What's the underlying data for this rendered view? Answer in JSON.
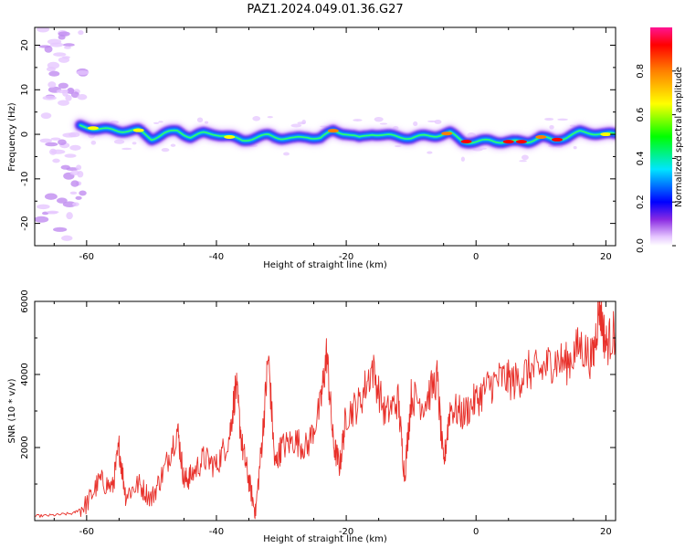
{
  "title": "PAZ1.2024.049.01.36.G27",
  "colors": {
    "snr_line": "#e8302a",
    "axis": "#000000"
  },
  "chart_data": [
    {
      "type": "heatmap",
      "xlabel": "Height of straight line (km)",
      "ylabel": "Frequency (Hz)",
      "xlim": [
        -68,
        21.5
      ],
      "ylim": [
        -25,
        24
      ],
      "xticks": [
        -60,
        -40,
        -20,
        0,
        20
      ],
      "yticks": [
        -20,
        -10,
        0,
        10,
        20
      ],
      "ridge": [
        [
          -61,
          1.8
        ],
        [
          -58,
          1.2
        ],
        [
          -55,
          0.8
        ],
        [
          -52,
          0.9
        ],
        [
          -50,
          -1.0
        ],
        [
          -48,
          0.2
        ],
        [
          -46,
          0.8
        ],
        [
          -44,
          -0.6
        ],
        [
          -42,
          0.2
        ],
        [
          -40,
          0.1
        ],
        [
          -38,
          -0.6
        ],
        [
          -36,
          -1.3
        ],
        [
          -34,
          -0.8
        ],
        [
          -32,
          -0.2
        ],
        [
          -30,
          -0.8
        ],
        [
          -28,
          -1.0
        ],
        [
          -26,
          -0.5
        ],
        [
          -24,
          -0.9
        ],
        [
          -22,
          0.8
        ],
        [
          -20,
          0.2
        ],
        [
          -18,
          -0.9
        ],
        [
          -16,
          0.2
        ],
        [
          -14,
          -0.3
        ],
        [
          -12,
          -0.5
        ],
        [
          -10,
          -0.8
        ],
        [
          -8,
          -0.4
        ],
        [
          -6,
          -0.2
        ],
        [
          -4,
          0.3
        ],
        [
          -2,
          -1.6
        ],
        [
          0,
          -1.7
        ],
        [
          2,
          -1.4
        ],
        [
          4,
          -1.6
        ],
        [
          6,
          -1.7
        ],
        [
          8,
          -1.6
        ],
        [
          10,
          -0.6
        ],
        [
          12,
          -1.4
        ],
        [
          14,
          -0.6
        ],
        [
          16,
          0.5
        ],
        [
          18,
          0.3
        ],
        [
          20,
          0.0
        ]
      ],
      "colorbar": {
        "label": "Normalized spectral amplitude",
        "range": [
          0.0,
          1.0
        ],
        "ticks": [
          0.0,
          0.2,
          0.4,
          0.6,
          0.8
        ]
      }
    },
    {
      "type": "line",
      "xlabel": "Height of straight line (km)",
      "ylabel": "SNR (10 * v/v)",
      "xlim": [
        -68,
        21.5
      ],
      "ylim": [
        0,
        6000
      ],
      "xticks": [
        -60,
        -40,
        -20,
        0,
        20
      ],
      "yticks": [
        2000,
        4000,
        6000
      ],
      "series": [
        {
          "x": [
            -68,
            -65,
            -62,
            -60,
            -58,
            -56,
            -55,
            -54,
            -52,
            -50,
            -48,
            -46,
            -45,
            -44,
            -42,
            -40,
            -38,
            -37,
            -36,
            -35,
            -34,
            -33,
            -32,
            -31,
            -30,
            -28,
            -26,
            -24,
            -23,
            -22,
            -21,
            -20,
            -18,
            -16,
            -14,
            -12,
            -11,
            -10,
            -8,
            -6,
            -5,
            -4,
            -2,
            0,
            2,
            4,
            6,
            8,
            10,
            12,
            14,
            16,
            18,
            19,
            20,
            21.5
          ],
          "y": [
            120,
            150,
            200,
            450,
            1100,
            900,
            2000,
            700,
            1000,
            600,
            1400,
            2500,
            1100,
            1200,
            1700,
            1500,
            2300,
            3700,
            2000,
            1100,
            200,
            2100,
            4500,
            1500,
            2000,
            2200,
            2000,
            3100,
            4600,
            2100,
            1500,
            2900,
            3200,
            4200,
            2900,
            3300,
            1200,
            3400,
            3200,
            3900,
            1500,
            3100,
            2900,
            3300,
            3700,
            3900,
            3800,
            4100,
            4100,
            4400,
            4300,
            4800,
            4400,
            5900,
            4800,
            5200
          ]
        }
      ]
    }
  ]
}
